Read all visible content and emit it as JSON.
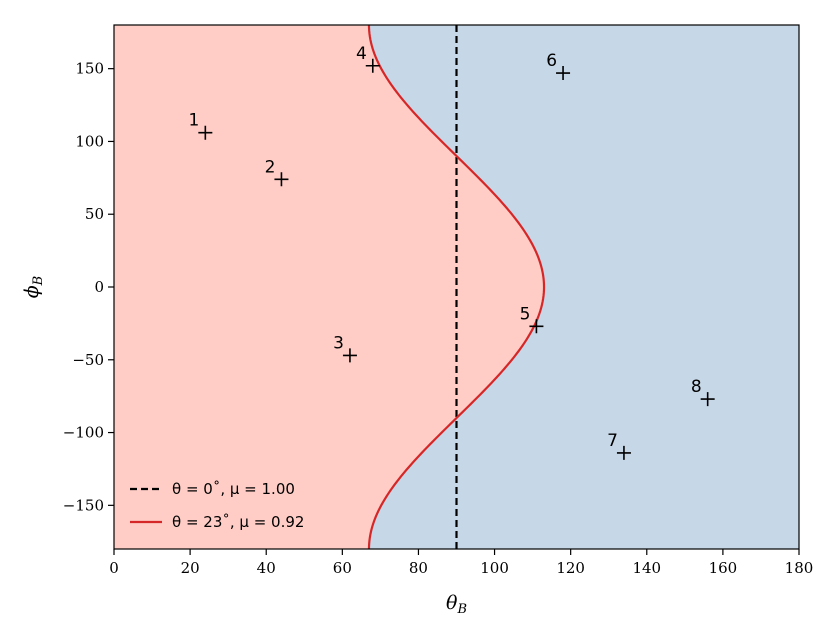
{
  "chart_data": {
    "type": "scatter",
    "xlabel": "θ_B",
    "ylabel": "ϕ_B",
    "xlim": [
      0,
      180
    ],
    "ylim": [
      -180,
      180
    ],
    "xticks": [
      0,
      20,
      40,
      60,
      80,
      100,
      120,
      140,
      160,
      180
    ],
    "yticks": [
      -150,
      -100,
      -50,
      0,
      50,
      100,
      150
    ],
    "xtick_labels": [
      "0",
      "20",
      "40",
      "60",
      "80",
      "100",
      "120",
      "140",
      "160",
      "180"
    ],
    "ytick_labels": [
      "−150",
      "−100",
      "−50",
      "0",
      "50",
      "100",
      "150"
    ],
    "points": [
      {
        "label": "1",
        "x": 24,
        "y": 106
      },
      {
        "label": "2",
        "x": 44,
        "y": 74
      },
      {
        "label": "3",
        "x": 62,
        "y": -47
      },
      {
        "label": "4",
        "x": 68,
        "y": 152
      },
      {
        "label": "5",
        "x": 111,
        "y": -27
      },
      {
        "label": "6",
        "x": 118,
        "y": 147
      },
      {
        "label": "7",
        "x": 134,
        "y": -114
      },
      {
        "label": "8",
        "x": 156,
        "y": -77
      }
    ],
    "boundaries": [
      {
        "name": "θ = 0˚, μ = 1.00",
        "theta_deg": 0,
        "style": "dashed",
        "color": "#000000"
      },
      {
        "name": "θ = 23˚, μ = 0.92",
        "theta_deg": 23,
        "style": "solid",
        "color": "#d62728"
      }
    ],
    "regions": {
      "left_color": "#ffcdc6",
      "right_color": "#c6d7e7"
    },
    "legend_location": "lower-left",
    "grid": false
  }
}
